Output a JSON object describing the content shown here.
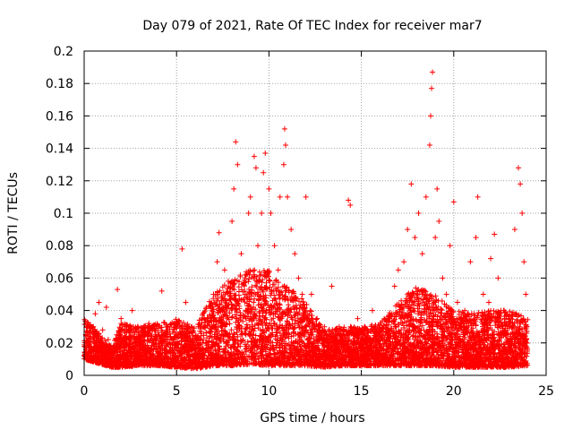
{
  "chart_data": {
    "type": "scatter",
    "title": "Day 079 of 2021, Rate Of TEC Index for receiver mar7",
    "xlabel": "GPS time / hours",
    "ylabel": "ROTI / TECUs",
    "xlim": [
      0,
      25
    ],
    "ylim": [
      0,
      0.2
    ],
    "xticks": [
      0,
      5,
      10,
      15,
      20,
      25
    ],
    "yticks": [
      0,
      0.02,
      0.04,
      0.06,
      0.08,
      0.1,
      0.12,
      0.14,
      0.16,
      0.18,
      0.2
    ],
    "xtick_labels": [
      "0",
      "5",
      "10",
      "15",
      "20",
      "25"
    ],
    "ytick_labels": [
      "0",
      "0.02",
      "0.04",
      "0.06",
      "0.08",
      "0.1",
      "0.12",
      "0.14",
      "0.16",
      "0.18",
      "0.2"
    ],
    "grid": true,
    "marker": "+",
    "color": "#ff0000",
    "series": [
      {
        "name": "ROTI",
        "points": [
          [
            0.1,
            0.025
          ],
          [
            0.3,
            0.018
          ],
          [
            0.5,
            0.03
          ],
          [
            0.6,
            0.038
          ],
          [
            0.8,
            0.045
          ],
          [
            1.0,
            0.028
          ],
          [
            1.2,
            0.042
          ],
          [
            1.3,
            0.022
          ],
          [
            1.6,
            0.015
          ],
          [
            1.8,
            0.053
          ],
          [
            2.0,
            0.035
          ],
          [
            2.3,
            0.022
          ],
          [
            2.6,
            0.04
          ],
          [
            3.0,
            0.02
          ],
          [
            3.5,
            0.032
          ],
          [
            4.2,
            0.052
          ],
          [
            4.5,
            0.03
          ],
          [
            5.0,
            0.025
          ],
          [
            5.3,
            0.078
          ],
          [
            5.5,
            0.045
          ],
          [
            5.8,
            0.015
          ],
          [
            6.0,
            0.005
          ],
          [
            6.5,
            0.03
          ],
          [
            7.0,
            0.05
          ],
          [
            7.2,
            0.07
          ],
          [
            7.3,
            0.088
          ],
          [
            7.6,
            0.065
          ],
          [
            7.8,
            0.058
          ],
          [
            8.0,
            0.095
          ],
          [
            8.1,
            0.115
          ],
          [
            8.2,
            0.144
          ],
          [
            8.3,
            0.13
          ],
          [
            8.5,
            0.075
          ],
          [
            8.7,
            0.06
          ],
          [
            8.9,
            0.1
          ],
          [
            9.0,
            0.11
          ],
          [
            9.2,
            0.135
          ],
          [
            9.3,
            0.128
          ],
          [
            9.4,
            0.08
          ],
          [
            9.6,
            0.1
          ],
          [
            9.7,
            0.125
          ],
          [
            9.8,
            0.137
          ],
          [
            10.0,
            0.115
          ],
          [
            10.1,
            0.1
          ],
          [
            10.3,
            0.08
          ],
          [
            10.5,
            0.065
          ],
          [
            10.6,
            0.11
          ],
          [
            10.8,
            0.13
          ],
          [
            10.85,
            0.152
          ],
          [
            10.9,
            0.142
          ],
          [
            11.0,
            0.11
          ],
          [
            11.2,
            0.09
          ],
          [
            11.4,
            0.075
          ],
          [
            11.6,
            0.06
          ],
          [
            11.8,
            0.05
          ],
          [
            12.0,
            0.11
          ],
          [
            12.3,
            0.05
          ],
          [
            12.6,
            0.035
          ],
          [
            13.0,
            0.03
          ],
          [
            13.4,
            0.055
          ],
          [
            13.8,
            0.03
          ],
          [
            14.3,
            0.108
          ],
          [
            14.4,
            0.105
          ],
          [
            14.8,
            0.035
          ],
          [
            15.2,
            0.03
          ],
          [
            15.6,
            0.04
          ],
          [
            16.0,
            0.025
          ],
          [
            16.5,
            0.035
          ],
          [
            16.8,
            0.055
          ],
          [
            17.0,
            0.065
          ],
          [
            17.3,
            0.07
          ],
          [
            17.5,
            0.09
          ],
          [
            17.7,
            0.118
          ],
          [
            17.9,
            0.085
          ],
          [
            18.1,
            0.1
          ],
          [
            18.3,
            0.075
          ],
          [
            18.5,
            0.11
          ],
          [
            18.7,
            0.142
          ],
          [
            18.75,
            0.16
          ],
          [
            18.8,
            0.177
          ],
          [
            18.85,
            0.187
          ],
          [
            19.0,
            0.085
          ],
          [
            19.1,
            0.115
          ],
          [
            19.2,
            0.095
          ],
          [
            19.4,
            0.06
          ],
          [
            19.6,
            0.05
          ],
          [
            19.8,
            0.08
          ],
          [
            20.0,
            0.107
          ],
          [
            20.2,
            0.045
          ],
          [
            20.6,
            0.04
          ],
          [
            20.9,
            0.07
          ],
          [
            21.2,
            0.085
          ],
          [
            21.3,
            0.11
          ],
          [
            21.6,
            0.05
          ],
          [
            21.9,
            0.045
          ],
          [
            22.0,
            0.072
          ],
          [
            22.2,
            0.087
          ],
          [
            22.4,
            0.06
          ],
          [
            22.7,
            0.04
          ],
          [
            23.0,
            0.03
          ],
          [
            23.3,
            0.09
          ],
          [
            23.5,
            0.128
          ],
          [
            23.6,
            0.118
          ],
          [
            23.7,
            0.1
          ],
          [
            23.8,
            0.07
          ],
          [
            23.9,
            0.05
          ]
        ],
        "band": [
          [
            0,
            0.01,
            0.035
          ],
          [
            1.5,
            0.005,
            0.018
          ],
          [
            2.0,
            0.005,
            0.032
          ],
          [
            3.0,
            0.006,
            0.03
          ],
          [
            4.0,
            0.006,
            0.032
          ],
          [
            5.0,
            0.005,
            0.035
          ],
          [
            6.0,
            0.004,
            0.03
          ],
          [
            7.0,
            0.006,
            0.05
          ],
          [
            8.0,
            0.006,
            0.06
          ],
          [
            9.0,
            0.007,
            0.065
          ],
          [
            10.0,
            0.006,
            0.065
          ],
          [
            11.0,
            0.006,
            0.055
          ],
          [
            12.0,
            0.006,
            0.045
          ],
          [
            13.0,
            0.005,
            0.028
          ],
          [
            14.0,
            0.006,
            0.03
          ],
          [
            15.0,
            0.006,
            0.03
          ],
          [
            16.0,
            0.006,
            0.032
          ],
          [
            17.0,
            0.006,
            0.045
          ],
          [
            18.0,
            0.006,
            0.055
          ],
          [
            19.0,
            0.006,
            0.05
          ],
          [
            20.0,
            0.005,
            0.04
          ],
          [
            21.0,
            0.005,
            0.038
          ],
          [
            22.0,
            0.005,
            0.04
          ],
          [
            23.0,
            0.005,
            0.04
          ],
          [
            24.0,
            0.006,
            0.035
          ]
        ]
      }
    ]
  }
}
